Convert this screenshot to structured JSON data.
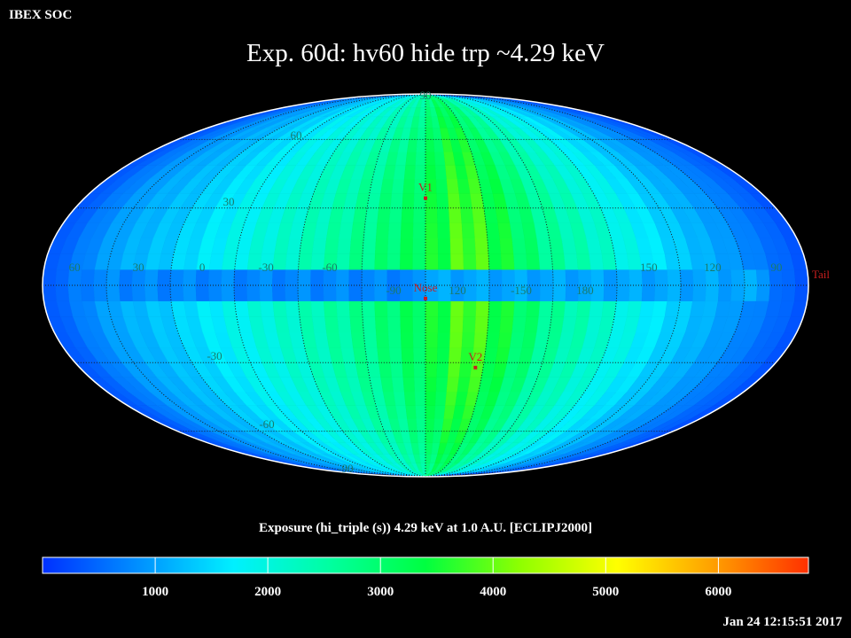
{
  "header": {
    "label": "IBEX SOC"
  },
  "title": "Exp.   60d: hv60 hide trp ~4.29 keV",
  "footer": {
    "timestamp": "Jan 24 12:15:51 2017"
  },
  "colors": {
    "background": "#000000",
    "grid": "#1a1a1a",
    "grid_label": "#1a7a6a",
    "marker": "#c81e1e",
    "marker_label": "#c81e1e",
    "colorscale": [
      "#0030ff",
      "#0090ff",
      "#00f0ff",
      "#00ffa0",
      "#00ff40",
      "#90ff00",
      "#ffff00",
      "#ffa000",
      "#ff3000"
    ]
  },
  "chart_data": {
    "type": "heatmap",
    "projection": "Mollweide",
    "coordinate_frame": "ECLIPJ2000",
    "center_longitude": 105,
    "longitude_labels": [
      "60",
      "30",
      "0",
      "-30",
      "-60",
      "-90",
      "120",
      "-150",
      "180",
      "150",
      "120",
      "90"
    ],
    "latitude_labels": {
      "north": [
        "90",
        "60",
        "30"
      ],
      "south": [
        "-30",
        "-60",
        "-90"
      ]
    },
    "markers": [
      {
        "label": "V1",
        "lon": 105,
        "lat": 34
      },
      {
        "label": "Nose",
        "lon": 105,
        "lat": -5
      },
      {
        "label": "V2",
        "lon": 131,
        "lat": -32
      },
      {
        "label": "Tail",
        "lon": 285,
        "lat": 5
      }
    ],
    "colorbar": {
      "title": "Exposure (hi_triple (s))  4.29 keV at 1.0 A.U. [ECLIPJ2000]",
      "range": [
        0,
        6800
      ],
      "ticks": [
        1000,
        2000,
        3000,
        4000,
        5000,
        6000
      ]
    },
    "exposure_by_longitude_offset": [
      {
        "offset_deg": -180,
        "value": 300
      },
      {
        "offset_deg": -150,
        "value": 1100
      },
      {
        "offset_deg": -120,
        "value": 1500
      },
      {
        "offset_deg": -90,
        "value": 2000
      },
      {
        "offset_deg": -60,
        "value": 2400
      },
      {
        "offset_deg": -30,
        "value": 2900
      },
      {
        "offset_deg": 0,
        "value": 3500
      },
      {
        "offset_deg": 20,
        "value": 4200
      },
      {
        "offset_deg": 30,
        "value": 3900
      },
      {
        "offset_deg": 60,
        "value": 2800
      },
      {
        "offset_deg": 90,
        "value": 2200
      },
      {
        "offset_deg": 120,
        "value": 1500
      },
      {
        "offset_deg": 150,
        "value": 900
      },
      {
        "offset_deg": 180,
        "value": 300
      }
    ],
    "ecliptic_band_value": 900,
    "legend": "bottom",
    "grid": true
  }
}
